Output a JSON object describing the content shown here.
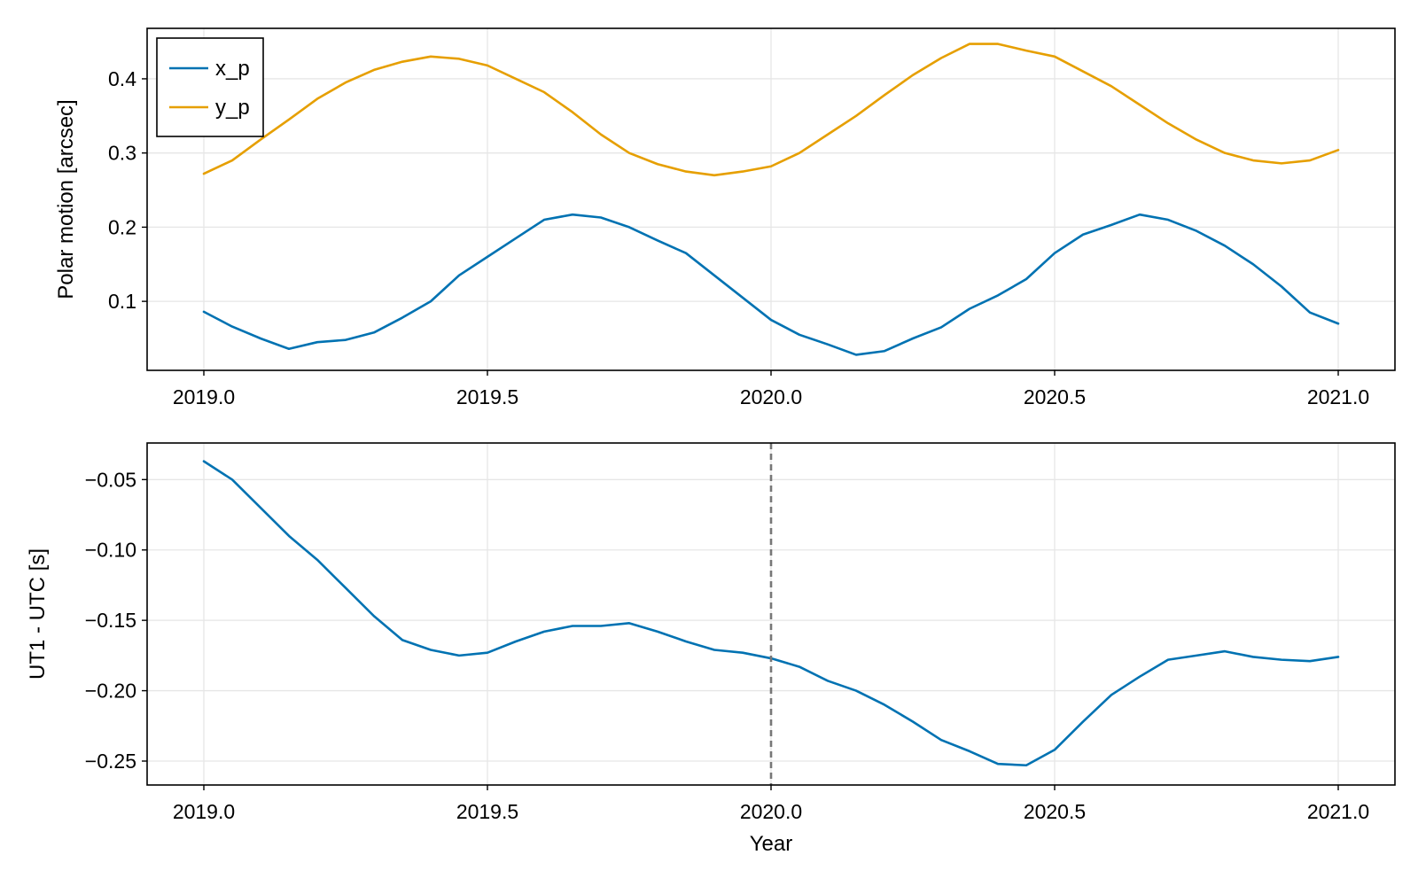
{
  "chart_data": [
    {
      "type": "line",
      "title": "",
      "xlabel": "",
      "ylabel": "Polar motion [arcsec]",
      "xlim": [
        2018.9,
        2021.1
      ],
      "ylim": [
        0.007,
        0.468
      ],
      "xticks": [
        2019.0,
        2019.5,
        2020.0,
        2020.5,
        2021.0
      ],
      "xtick_labels": [
        "2019.0",
        "2019.5",
        "2020.0",
        "2020.5",
        "2021.0"
      ],
      "yticks": [
        0.1,
        0.2,
        0.3,
        0.4
      ],
      "ytick_labels": [
        "0.1",
        "0.2",
        "0.3",
        "0.4"
      ],
      "grid": true,
      "legend_position": "top-left",
      "series": [
        {
          "name": "x_p",
          "color": "#0072b2",
          "x": [
            2019.0,
            2019.05,
            2019.1,
            2019.15,
            2019.2,
            2019.25,
            2019.3,
            2019.35,
            2019.4,
            2019.45,
            2019.5,
            2019.55,
            2019.6,
            2019.65,
            2019.7,
            2019.75,
            2019.8,
            2019.85,
            2019.9,
            2019.95,
            2020.0,
            2020.05,
            2020.1,
            2020.15,
            2020.2,
            2020.25,
            2020.3,
            2020.35,
            2020.4,
            2020.45,
            2020.5,
            2020.55,
            2020.6,
            2020.65,
            2020.7,
            2020.75,
            2020.8,
            2020.85,
            2020.9,
            2020.95,
            2021.0
          ],
          "y": [
            0.086,
            0.066,
            0.05,
            0.036,
            0.045,
            0.048,
            0.058,
            0.078,
            0.1,
            0.135,
            0.16,
            0.185,
            0.21,
            0.217,
            0.213,
            0.2,
            0.182,
            0.165,
            0.135,
            0.105,
            0.075,
            0.055,
            0.042,
            0.028,
            0.033,
            0.05,
            0.065,
            0.09,
            0.108,
            0.13,
            0.165,
            0.19,
            0.203,
            0.217,
            0.21,
            0.195,
            0.175,
            0.15,
            0.12,
            0.085,
            0.07
          ]
        },
        {
          "name": "y_p",
          "color": "#e69f00",
          "x": [
            2019.0,
            2019.05,
            2019.1,
            2019.15,
            2019.2,
            2019.25,
            2019.3,
            2019.35,
            2019.4,
            2019.45,
            2019.5,
            2019.55,
            2019.6,
            2019.65,
            2019.7,
            2019.75,
            2019.8,
            2019.85,
            2019.9,
            2019.95,
            2020.0,
            2020.05,
            2020.1,
            2020.15,
            2020.2,
            2020.25,
            2020.3,
            2020.35,
            2020.4,
            2020.45,
            2020.5,
            2020.55,
            2020.6,
            2020.65,
            2020.7,
            2020.75,
            2020.8,
            2020.85,
            2020.9,
            2020.95,
            2021.0
          ],
          "y": [
            0.272,
            0.29,
            0.318,
            0.345,
            0.373,
            0.395,
            0.412,
            0.423,
            0.43,
            0.427,
            0.418,
            0.4,
            0.382,
            0.355,
            0.325,
            0.3,
            0.285,
            0.275,
            0.27,
            0.275,
            0.282,
            0.3,
            0.325,
            0.35,
            0.378,
            0.405,
            0.428,
            0.447,
            0.447,
            0.438,
            0.43,
            0.41,
            0.39,
            0.365,
            0.34,
            0.318,
            0.3,
            0.29,
            0.286,
            0.29,
            0.304
          ]
        }
      ]
    },
    {
      "type": "line",
      "title": "",
      "xlabel": "Year",
      "ylabel": "UT1 - UTC [s]",
      "xlim": [
        2018.9,
        2021.1
      ],
      "ylim": [
        -0.267,
        -0.024
      ],
      "xticks": [
        2019.0,
        2019.5,
        2020.0,
        2020.5,
        2021.0
      ],
      "xtick_labels": [
        "2019.0",
        "2019.5",
        "2020.0",
        "2020.5",
        "2021.0"
      ],
      "yticks": [
        -0.05,
        -0.1,
        -0.15,
        -0.2,
        -0.25
      ],
      "ytick_labels": [
        "−0.05",
        "−0.10",
        "−0.15",
        "−0.20",
        "−0.25"
      ],
      "grid": true,
      "vline": {
        "x": 2020.0,
        "style": "dashed",
        "color": "#777777"
      },
      "series": [
        {
          "color": "#0072b2",
          "x": [
            2019.0,
            2019.05,
            2019.1,
            2019.15,
            2019.2,
            2019.25,
            2019.3,
            2019.35,
            2019.4,
            2019.45,
            2019.5,
            2019.55,
            2019.6,
            2019.65,
            2019.7,
            2019.75,
            2019.8,
            2019.85,
            2019.9,
            2019.95,
            2020.0,
            2020.05,
            2020.1,
            2020.15,
            2020.2,
            2020.25,
            2020.3,
            2020.35,
            2020.4,
            2020.45,
            2020.5,
            2020.55,
            2020.6,
            2020.65,
            2020.7,
            2020.75,
            2020.8,
            2020.85,
            2020.9,
            2020.95,
            2021.0
          ],
          "y": [
            -0.037,
            -0.05,
            -0.07,
            -0.09,
            -0.107,
            -0.127,
            -0.147,
            -0.164,
            -0.171,
            -0.175,
            -0.173,
            -0.165,
            -0.158,
            -0.154,
            -0.154,
            -0.152,
            -0.158,
            -0.165,
            -0.171,
            -0.173,
            -0.177,
            -0.183,
            -0.193,
            -0.2,
            -0.21,
            -0.222,
            -0.235,
            -0.243,
            -0.252,
            -0.253,
            -0.242,
            -0.222,
            -0.203,
            -0.19,
            -0.178,
            -0.175,
            -0.172,
            -0.176,
            -0.178,
            -0.179,
            -0.176
          ]
        }
      ]
    }
  ]
}
